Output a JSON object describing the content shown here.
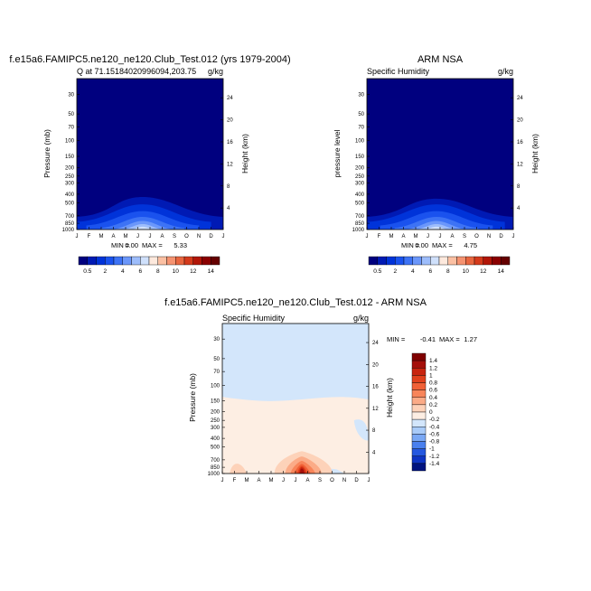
{
  "chart_data": [
    {
      "type": "heatmap",
      "title": "f.e15a6.FAMIPC5.ne120_ne120.Club_Test.012 (yrs 1979-2004)",
      "subtitle_left": "Q at 71.15184020996094,203.75",
      "units": "g/kg",
      "xlabel": "",
      "ylabel": "Pressure (mb)",
      "ylabel_right": "Height (km)",
      "x": [
        "J",
        "F",
        "M",
        "A",
        "M",
        "J",
        "J",
        "A",
        "S",
        "O",
        "N",
        "D",
        "J"
      ],
      "pressure_ticks": [
        30,
        50,
        70,
        100,
        150,
        200,
        250,
        300,
        400,
        500,
        700,
        850,
        1000
      ],
      "height_ticks": [
        4,
        8,
        12,
        16,
        20,
        24
      ],
      "ylim": [
        1000,
        20
      ],
      "min_label": "MIN =",
      "min_value": "0.00",
      "max_label": "MAX =",
      "max_value": "5.33",
      "colorbar": {
        "labels": [
          "0.5",
          "2",
          "4",
          "6",
          "8",
          "10",
          "12",
          "14"
        ],
        "colors": [
          "#00007f",
          "#001ab4",
          "#0033d9",
          "#1a52ee",
          "#3d73f5",
          "#6b97fa",
          "#9dbdfb",
          "#cfe0fb",
          "#fde9dd",
          "#fbc0a3",
          "#f59371",
          "#e8663f",
          "#d43a1b",
          "#b21608",
          "#8a0000",
          "#650000"
        ]
      },
      "peak": {
        "month": 5.0,
        "plevel": 850,
        "value": 5.33
      }
    },
    {
      "type": "heatmap",
      "title": "ARM NSA",
      "subtitle_left": "Specific Humidity",
      "units": "g/kg",
      "xlabel": "",
      "ylabel": "pressure level",
      "ylabel_right": "Height (km)",
      "x": [
        "J",
        "F",
        "M",
        "A",
        "M",
        "J",
        "J",
        "A",
        "S",
        "O",
        "N",
        "D",
        "J"
      ],
      "pressure_ticks": [
        30,
        50,
        70,
        100,
        150,
        200,
        250,
        300,
        400,
        500,
        700,
        850,
        1000
      ],
      "height_ticks": [
        4,
        8,
        12,
        16,
        20,
        24
      ],
      "ylim": [
        1000,
        20
      ],
      "min_label": "MIN =",
      "min_value": "0.00",
      "max_label": "MAX =",
      "max_value": "4.75",
      "colorbar": {
        "labels": [
          "0.5",
          "2",
          "4",
          "6",
          "8",
          "10",
          "12",
          "14"
        ],
        "colors": [
          "#00007f",
          "#001ab4",
          "#0033d9",
          "#1a52ee",
          "#3d73f5",
          "#6b97fa",
          "#9dbdfb",
          "#cfe0fb",
          "#fde9dd",
          "#fbc0a3",
          "#f59371",
          "#e8663f",
          "#d43a1b",
          "#b21608",
          "#8a0000",
          "#650000"
        ]
      },
      "peak": {
        "month": 5.3,
        "plevel": 900,
        "value": 4.75
      }
    },
    {
      "type": "heatmap",
      "title": "f.e15a6.FAMIPC5.ne120_ne120.Club_Test.012 - ARM NSA",
      "subtitle_left": "Specific Humidity",
      "units": "g/kg",
      "xlabel": "",
      "ylabel": "Pressure (mb)",
      "ylabel_right": "Height (km)",
      "x": [
        "J",
        "F",
        "M",
        "A",
        "M",
        "J",
        "J",
        "A",
        "S",
        "O",
        "N",
        "D",
        "J"
      ],
      "pressure_ticks": [
        30,
        50,
        70,
        100,
        150,
        200,
        250,
        300,
        400,
        500,
        700,
        850,
        1000
      ],
      "height_ticks": [
        4,
        8,
        12,
        16,
        20,
        24
      ],
      "ylim": [
        1000,
        20
      ],
      "min_label": "MIN =",
      "min_value": "-0.41",
      "max_label": "MAX =",
      "max_value": "1.27",
      "colorbar": {
        "labels": [
          "1.4",
          "1.2",
          "1",
          "0.8",
          "0.6",
          "0.4",
          "0.2",
          "0",
          "-0.2",
          "-0.4",
          "-0.6",
          "-0.8",
          "-1",
          "-1.2",
          "-1.4"
        ],
        "colors": [
          "#7f0000",
          "#a50f0a",
          "#c8240f",
          "#e0401c",
          "#f06036",
          "#f8855a",
          "#fbab87",
          "#fdd2b9",
          "#fdeee3",
          "#d3e6fb",
          "#a9cbf8",
          "#7aa8f4",
          "#4a80ee",
          "#2558e0",
          "#0e34c4",
          "#00137f"
        ]
      },
      "peak": {
        "month": 6.5,
        "plevel": 850,
        "value": 1.27
      }
    }
  ]
}
